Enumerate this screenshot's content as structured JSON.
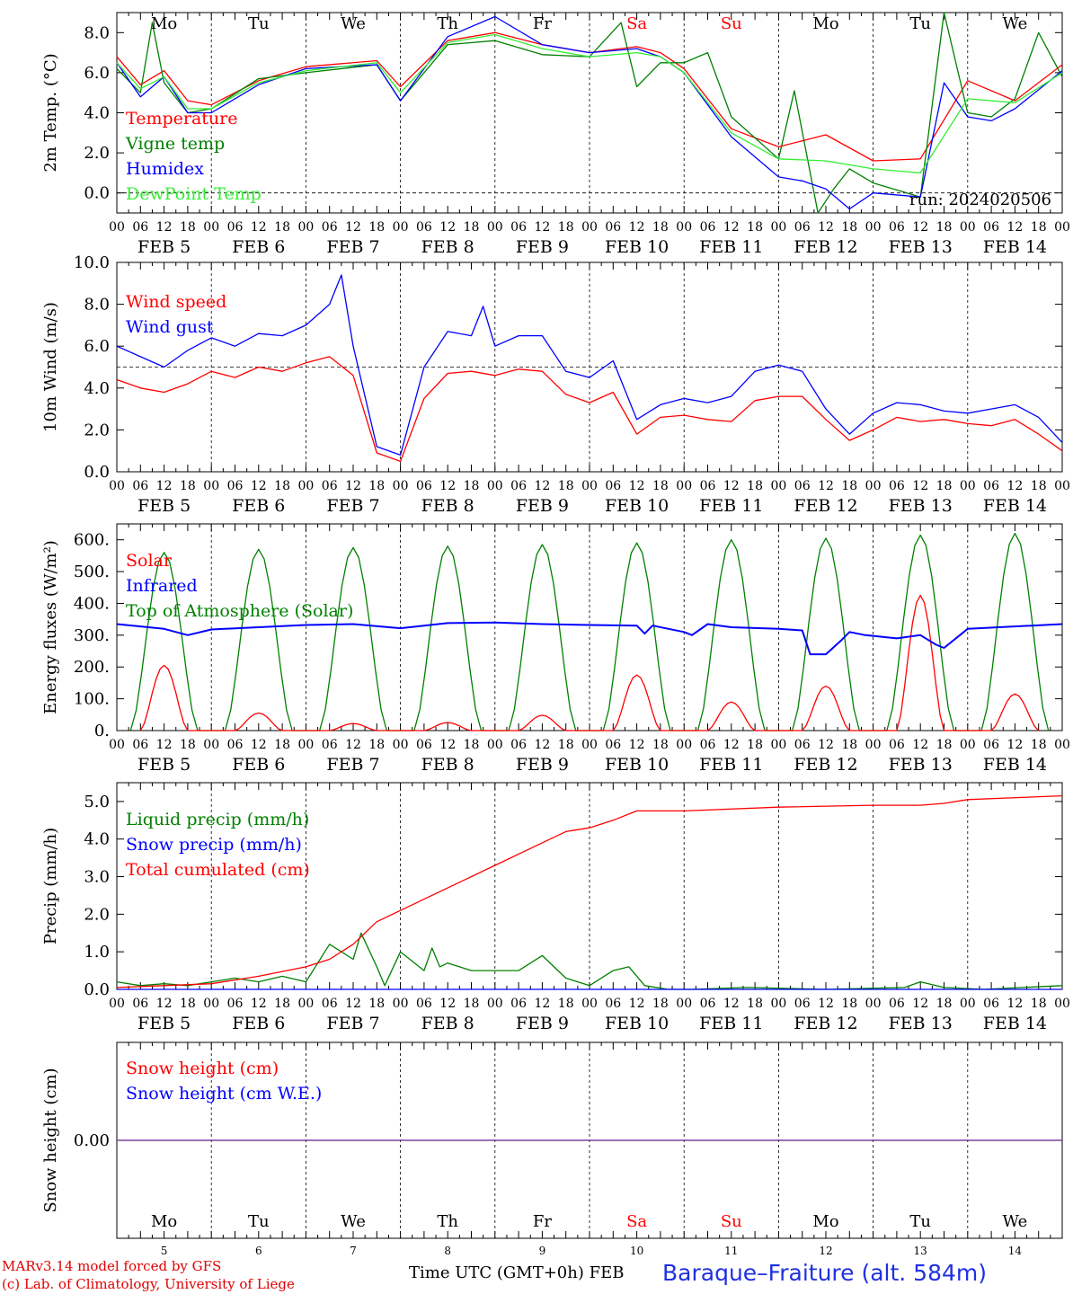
{
  "footer": {
    "credit_line1": "MARv3.14 model forced by GFS",
    "credit_line2": "(c) Lab. of Climatology, University of Liege",
    "time_label": "Time UTC (GMT+0h) FEB",
    "station": "Baraque–Fraiture (alt. 584m)"
  },
  "days": {
    "weekday": [
      "Mo",
      "Tu",
      "We",
      "Th",
      "Fr",
      "Sa",
      "Su",
      "Mo",
      "Tu",
      "We"
    ],
    "weekend_flags": [
      false,
      false,
      false,
      false,
      false,
      true,
      true,
      false,
      false,
      false
    ],
    "date_labels": [
      "FEB  5",
      "FEB  6",
      "FEB  7",
      "FEB  8",
      "FEB  9",
      "FEB 10",
      "FEB 11",
      "FEB 12",
      "FEB 13",
      "FEB 14"
    ],
    "day_numbers": [
      "5",
      "6",
      "7",
      "8",
      "9",
      "10",
      "11",
      "12",
      "13",
      "14"
    ],
    "hour_ticks": [
      "00",
      "06",
      "12",
      "18"
    ],
    "final_tick": "00"
  },
  "colors": {
    "red": "#ff0000",
    "green": "#008000",
    "blue": "#0000ff",
    "lightgreen": "#33ee33",
    "purple": "#7a3a9a",
    "weekend_text": "#ff0000"
  },
  "chart_data": [
    {
      "type": "line",
      "ylabel": "2m Temp. (°C)",
      "ylim": [
        -1.0,
        9.0
      ],
      "yticks": [
        "8.0",
        "6.0",
        "4.0",
        "2.0",
        "0.0"
      ],
      "ytick_values": [
        8,
        6,
        4,
        2,
        0
      ],
      "ref_line": 0,
      "annotation": "run: 2024020506",
      "x_unit": "hours since FEB 5 00 UTC",
      "legend": [
        "Temperature",
        "Vigne temp",
        "Humidex",
        "DewPoint Temp"
      ],
      "series": [
        {
          "name": "Temperature",
          "color": "red",
          "x": [
            0,
            6,
            12,
            18,
            24,
            36,
            48,
            66,
            72,
            84,
            96,
            108,
            120,
            132,
            138,
            144,
            156,
            168,
            180,
            192,
            204,
            216,
            228,
            240
          ],
          "y": [
            6.8,
            5.4,
            6.1,
            4.6,
            4.4,
            5.6,
            6.3,
            6.6,
            5.3,
            7.6,
            8.0,
            7.4,
            7.0,
            7.3,
            7.0,
            6.2,
            3.2,
            2.3,
            2.9,
            1.6,
            1.7,
            5.6,
            4.6,
            6.4
          ]
        },
        {
          "name": "Vigne temp",
          "color": "green",
          "x": [
            0,
            6,
            9,
            12,
            18,
            24,
            36,
            48,
            66,
            72,
            84,
            96,
            108,
            120,
            128,
            132,
            138,
            144,
            150,
            156,
            168,
            172,
            178,
            182,
            186,
            192,
            204,
            210,
            216,
            222,
            228,
            234,
            240
          ],
          "y": [
            6.2,
            5.0,
            8.5,
            5.5,
            4.0,
            4.2,
            5.7,
            6.0,
            6.4,
            4.6,
            7.4,
            7.6,
            6.9,
            6.8,
            8.5,
            5.3,
            6.5,
            6.5,
            7.0,
            3.8,
            1.7,
            5.1,
            -1.0,
            0.2,
            1.2,
            0.5,
            -0.2,
            9.0,
            4.0,
            3.8,
            4.7,
            8.0,
            5.8
          ]
        },
        {
          "name": "Humidex",
          "color": "blue",
          "x": [
            0,
            6,
            12,
            18,
            24,
            36,
            48,
            66,
            72,
            84,
            96,
            108,
            120,
            132,
            138,
            144,
            156,
            168,
            174,
            180,
            186,
            192,
            204,
            210,
            216,
            222,
            228,
            240
          ],
          "y": [
            6.5,
            4.8,
            5.8,
            4.0,
            4.0,
            5.4,
            6.2,
            6.4,
            4.6,
            7.8,
            8.8,
            7.4,
            7.0,
            7.2,
            6.8,
            6.0,
            2.8,
            0.8,
            0.6,
            0.2,
            -0.8,
            0.0,
            -0.2,
            5.5,
            3.8,
            3.6,
            4.2,
            6.1
          ]
        },
        {
          "name": "DewPoint Temp",
          "color": "lightgreen",
          "x": [
            0,
            6,
            12,
            18,
            24,
            36,
            48,
            66,
            72,
            84,
            96,
            108,
            120,
            132,
            138,
            144,
            156,
            168,
            180,
            192,
            204,
            216,
            228,
            240
          ],
          "y": [
            6.5,
            5.2,
            5.8,
            4.2,
            4.2,
            5.5,
            6.1,
            6.5,
            5.0,
            7.5,
            7.9,
            7.2,
            6.8,
            7.0,
            6.8,
            6.0,
            3.0,
            1.7,
            1.6,
            1.2,
            1.0,
            4.7,
            4.5,
            6.0
          ]
        }
      ]
    },
    {
      "type": "line",
      "ylabel": "10m Wind (m/s)",
      "ylim": [
        0.0,
        10.0
      ],
      "yticks": [
        "10.0",
        "8.0",
        "6.0",
        "4.0",
        "2.0",
        "0.0"
      ],
      "ytick_values": [
        10,
        8,
        6,
        4,
        2,
        0
      ],
      "ref_line": 5,
      "x_unit": "hours since FEB 5 00 UTC",
      "legend": [
        "Wind speed",
        "Wind gust"
      ],
      "series": [
        {
          "name": "Wind speed",
          "color": "red",
          "x": [
            0,
            6,
            12,
            18,
            24,
            30,
            36,
            42,
            48,
            54,
            60,
            66,
            72,
            78,
            84,
            90,
            96,
            102,
            108,
            114,
            120,
            126,
            132,
            138,
            144,
            150,
            156,
            162,
            168,
            174,
            180,
            186,
            192,
            198,
            204,
            210,
            216,
            222,
            228,
            234,
            240
          ],
          "y": [
            4.4,
            4.0,
            3.8,
            4.2,
            4.8,
            4.5,
            5.0,
            4.8,
            5.2,
            5.5,
            4.6,
            0.9,
            0.5,
            3.5,
            4.7,
            4.8,
            4.6,
            4.9,
            4.8,
            3.7,
            3.3,
            3.8,
            1.8,
            2.6,
            2.7,
            2.5,
            2.4,
            3.4,
            3.6,
            3.6,
            2.5,
            1.5,
            2.0,
            2.6,
            2.4,
            2.5,
            2.3,
            2.2,
            2.5,
            1.8,
            1.0
          ]
        },
        {
          "name": "Wind gust",
          "color": "blue",
          "x": [
            0,
            6,
            12,
            18,
            24,
            30,
            36,
            42,
            48,
            54,
            57,
            60,
            66,
            72,
            78,
            84,
            90,
            93,
            96,
            102,
            108,
            114,
            120,
            126,
            132,
            138,
            144,
            150,
            156,
            162,
            168,
            174,
            180,
            186,
            192,
            198,
            204,
            210,
            216,
            222,
            228,
            234,
            240
          ],
          "y": [
            6.0,
            5.5,
            5.0,
            5.8,
            6.4,
            6.0,
            6.6,
            6.5,
            7.0,
            8.0,
            9.4,
            6.0,
            1.2,
            0.8,
            5.0,
            6.7,
            6.5,
            7.9,
            6.0,
            6.5,
            6.5,
            4.8,
            4.5,
            5.3,
            2.5,
            3.2,
            3.5,
            3.3,
            3.6,
            4.8,
            5.1,
            4.8,
            3.0,
            1.8,
            2.8,
            3.3,
            3.2,
            2.9,
            2.8,
            3.0,
            3.2,
            2.6,
            1.4
          ]
        }
      ]
    },
    {
      "type": "line",
      "ylabel": "Energy fluxes (W/m²)",
      "ylim": [
        0,
        650
      ],
      "yticks": [
        "600.",
        "500.",
        "400.",
        "300.",
        "200.",
        "100.",
        "0."
      ],
      "ytick_values": [
        600,
        500,
        400,
        300,
        200,
        100,
        0
      ],
      "x_unit": "hours since FEB 5 00 UTC",
      "legend": [
        "Solar",
        "Infrared",
        "Top of Atmosphere (Solar)"
      ],
      "series": [
        {
          "name": "Top of Atmosphere (Solar)",
          "color": "green",
          "peaks": [
            560,
            570,
            575,
            580,
            585,
            590,
            600,
            605,
            615,
            620
          ]
        },
        {
          "name": "Solar",
          "color": "red",
          "peaks": [
            205,
            55,
            22,
            25,
            48,
            175,
            90,
            140,
            425,
            115
          ]
        },
        {
          "name": "Infrared",
          "color": "blue",
          "x": [
            0,
            12,
            18,
            24,
            36,
            48,
            60,
            72,
            84,
            96,
            108,
            120,
            132,
            134,
            136,
            144,
            146,
            150,
            156,
            168,
            174,
            176,
            180,
            184,
            186,
            190,
            198,
            204,
            208,
            210,
            216,
            240
          ],
          "y": [
            335,
            320,
            300,
            318,
            325,
            332,
            335,
            322,
            338,
            340,
            335,
            332,
            330,
            305,
            330,
            310,
            300,
            335,
            325,
            320,
            315,
            240,
            240,
            285,
            310,
            300,
            290,
            300,
            270,
            260,
            320,
            335
          ]
        }
      ]
    },
    {
      "type": "line",
      "ylabel": "Precip (mm/h)",
      "ylim": [
        0.0,
        5.5
      ],
      "yticks": [
        "5.0",
        "4.0",
        "3.0",
        "2.0",
        "1.0",
        "0.0"
      ],
      "ytick_values": [
        5,
        4,
        3,
        2,
        1,
        0
      ],
      "x_unit": "hours since FEB 5 00 UTC",
      "legend": [
        "Liquid precip (mm/h)",
        "Snow precip (mm/h)",
        "Total cumulated (cm)"
      ],
      "series": [
        {
          "name": "Liquid precip (mm/h)",
          "color": "green",
          "x": [
            0,
            6,
            12,
            18,
            24,
            30,
            36,
            42,
            48,
            54,
            60,
            62,
            66,
            68,
            72,
            78,
            80,
            82,
            84,
            90,
            96,
            102,
            108,
            114,
            120,
            126,
            130,
            134,
            140,
            146,
            160,
            180,
            200,
            204,
            210,
            220,
            230,
            240
          ],
          "y": [
            0.2,
            0.1,
            0.15,
            0.1,
            0.2,
            0.3,
            0.2,
            0.35,
            0.2,
            1.2,
            0.8,
            1.5,
            0.6,
            0.1,
            1.0,
            0.5,
            1.1,
            0.6,
            0.7,
            0.5,
            0.5,
            0.5,
            0.9,
            0.3,
            0.1,
            0.5,
            0.6,
            0.1,
            0.0,
            0.0,
            0.05,
            0.0,
            0.05,
            0.2,
            0.05,
            0.0,
            0.05,
            0.1
          ]
        },
        {
          "name": "Snow precip (mm/h)",
          "color": "blue",
          "x": [
            0,
            240
          ],
          "y": [
            0.0,
            0.0
          ]
        },
        {
          "name": "Total cumulated (cm)",
          "color": "red",
          "x": [
            0,
            12,
            24,
            36,
            48,
            54,
            60,
            66,
            72,
            78,
            84,
            96,
            108,
            114,
            120,
            126,
            132,
            144,
            168,
            192,
            204,
            210,
            216,
            240
          ],
          "y": [
            0.05,
            0.1,
            0.15,
            0.35,
            0.6,
            0.8,
            1.2,
            1.8,
            2.1,
            2.4,
            2.7,
            3.3,
            3.9,
            4.2,
            4.3,
            4.5,
            4.75,
            4.75,
            4.85,
            4.9,
            4.9,
            4.95,
            5.05,
            5.15
          ]
        }
      ]
    },
    {
      "type": "line",
      "ylabel": "Snow height (cm)",
      "ylim": [
        -1.0,
        1.0
      ],
      "yticks": [
        "0.00"
      ],
      "ytick_values": [
        0
      ],
      "x_unit": "hours since FEB 5 00 UTC",
      "legend": [
        "Snow height (cm)",
        "Snow height (cm W.E.)"
      ],
      "series": [
        {
          "name": "Snow height (cm)",
          "color": "red",
          "x": [
            0,
            240
          ],
          "y": [
            0,
            0
          ]
        },
        {
          "name": "Snow height (cm W.E.)",
          "color": "blue",
          "x": [
            0,
            240
          ],
          "y": [
            0,
            0
          ]
        }
      ]
    }
  ]
}
